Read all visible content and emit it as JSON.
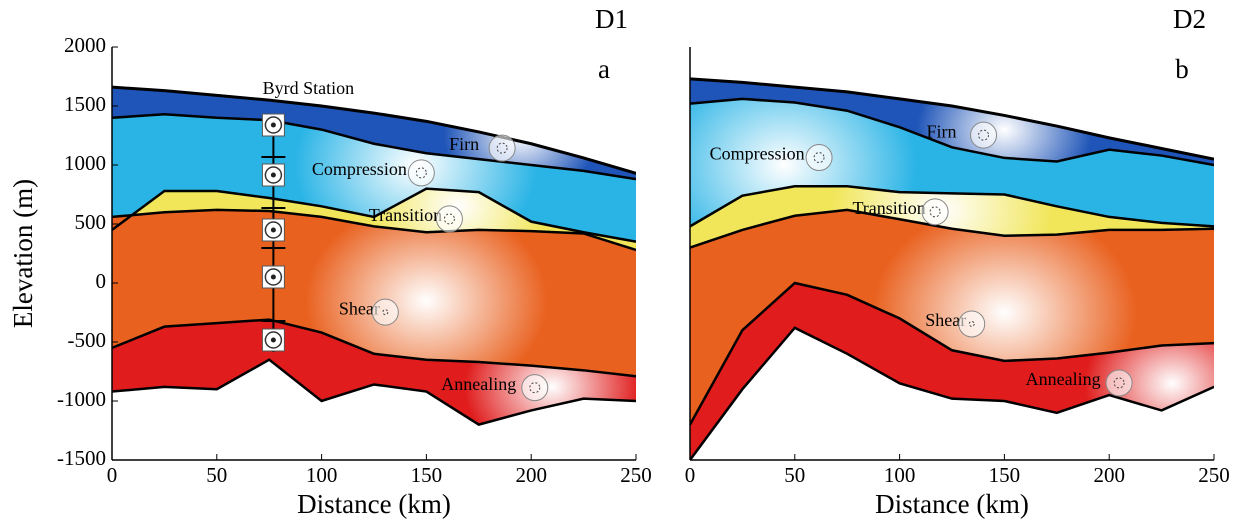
{
  "chart_data": [
    {
      "type": "area",
      "corner_label": "D1",
      "panel_label": "a",
      "annotation": "Byrd Station",
      "xlabel": "Distance (km)",
      "ylabel": "Elevation (m)",
      "xlim": [
        0,
        250
      ],
      "xticks": [
        0,
        50,
        100,
        150,
        200,
        250
      ],
      "ylim": [
        -1500,
        2000
      ],
      "yticks": [
        -1500,
        -1000,
        -500,
        0,
        500,
        1000,
        1500,
        2000
      ],
      "x": [
        0,
        25,
        50,
        75,
        100,
        125,
        150,
        175,
        200,
        225,
        250
      ],
      "series": [
        {
          "values": [
            1660,
            1630,
            1590,
            1550,
            1500,
            1440,
            1370,
            1280,
            1180,
            1060,
            930
          ]
        },
        {
          "values": [
            1400,
            1430,
            1400,
            1380,
            1300,
            1180,
            1100,
            1050,
            1000,
            950,
            880
          ]
        },
        {
          "values": [
            450,
            780,
            780,
            720,
            650,
            560,
            800,
            770,
            520,
            430,
            350
          ]
        },
        {
          "values": [
            560,
            600,
            620,
            610,
            560,
            480,
            430,
            450,
            440,
            420,
            280
          ]
        },
        {
          "values": [
            -550,
            -370,
            -340,
            -310,
            -420,
            -600,
            -650,
            -670,
            -700,
            -740,
            -790
          ]
        },
        {
          "values": [
            -920,
            -880,
            -900,
            -650,
            -1000,
            -860,
            -920,
            -1200,
            -1080,
            -980,
            -1000
          ]
        }
      ],
      "layers": [
        {
          "name": "Firn",
          "color": "#1f55b8"
        },
        {
          "name": "Compression",
          "color": "#2ab4e6"
        },
        {
          "name": "Transition",
          "color": "#f1e65a"
        },
        {
          "name": "Shear",
          "color": "#e9611f"
        },
        {
          "name": "Annealing",
          "color": "#e01c1c"
        }
      ]
    },
    {
      "type": "area",
      "corner_label": "D2",
      "panel_label": "b",
      "xlabel": "Distance (km)",
      "xlim": [
        0,
        250
      ],
      "xticks": [
        0,
        50,
        100,
        150,
        200,
        250
      ],
      "ylim": [
        -1500,
        2000
      ],
      "x": [
        0,
        25,
        50,
        75,
        100,
        125,
        150,
        175,
        200,
        225,
        250
      ],
      "series": [
        {
          "values": [
            1730,
            1700,
            1660,
            1620,
            1560,
            1500,
            1420,
            1330,
            1230,
            1140,
            1050
          ]
        },
        {
          "values": [
            1520,
            1560,
            1530,
            1460,
            1320,
            1150,
            1060,
            1030,
            1130,
            1080,
            1000
          ]
        },
        {
          "values": [
            480,
            740,
            820,
            820,
            770,
            760,
            750,
            650,
            560,
            510,
            480
          ]
        },
        {
          "values": [
            300,
            450,
            570,
            620,
            540,
            460,
            400,
            410,
            450,
            450,
            460
          ]
        },
        {
          "values": [
            -1200,
            -400,
            0,
            -100,
            -300,
            -570,
            -660,
            -640,
            -590,
            -530,
            -510
          ]
        },
        {
          "values": [
            -1500,
            -900,
            -380,
            -600,
            -850,
            -980,
            -1000,
            -1100,
            -950,
            -1080,
            -880
          ]
        }
      ],
      "layers": [
        {
          "name": "Firn",
          "color": "#1f55b8"
        },
        {
          "name": "Compression",
          "color": "#2ab4e6"
        },
        {
          "name": "Transition",
          "color": "#f1e65a"
        },
        {
          "name": "Shear",
          "color": "#e9611f"
        },
        {
          "name": "Annealing",
          "color": "#e01c1c"
        }
      ]
    }
  ]
}
